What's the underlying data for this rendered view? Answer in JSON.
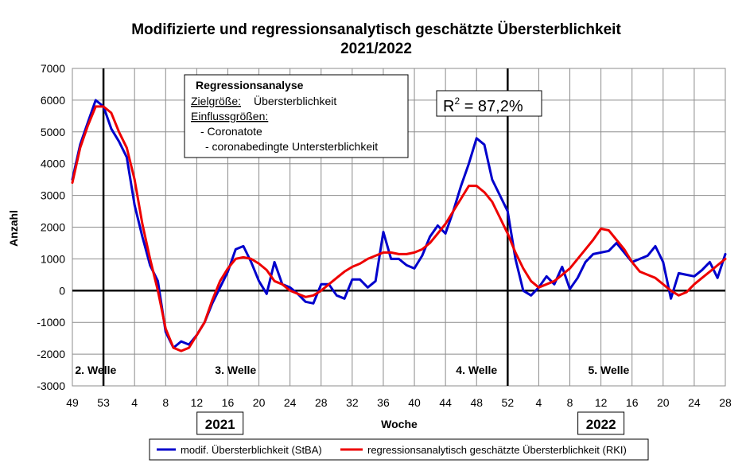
{
  "chart_data": {
    "type": "line",
    "title_line1": "Modifizierte und regressionsanalytisch geschätzte Übersterblichkeit",
    "title_line2": "2021/2022",
    "ylabel": "Anzahl",
    "xlabel": "Woche",
    "ylim": [
      -3000,
      7000
    ],
    "y_ticks": [
      "7000",
      "6000",
      "5000",
      "4000",
      "3000",
      "2000",
      "1000",
      "0",
      "-1000",
      "-2000",
      "-3000"
    ],
    "x_tick_labels": [
      "49",
      "53",
      "4",
      "8",
      "12",
      "16",
      "20",
      "24",
      "28",
      "32",
      "36",
      "40",
      "44",
      "48",
      "52",
      "4",
      "8",
      "12",
      "16",
      "20",
      "24",
      "28"
    ],
    "x_index_range": [
      0,
      84
    ],
    "x_tick_step": 4,
    "grid": true,
    "year_labels": [
      {
        "text": "2021",
        "week_index": 19
      },
      {
        "text": "2022",
        "week_index": 68
      }
    ],
    "wave_separators": [
      4,
      56
    ],
    "wave_labels": [
      {
        "text": "2.  Welle",
        "week_index": 3
      },
      {
        "text": "3.  Welle",
        "week_index": 21
      },
      {
        "text": "4.  Welle",
        "week_index": 52
      },
      {
        "text": "5.  Welle",
        "week_index": 69
      }
    ],
    "regression_box": {
      "heading": "Regressionsanalyse",
      "target_label": "Zielgröße:",
      "target_value": "Übersterblichkeit",
      "inputs_label": "Einflussgrößen:",
      "inputs": [
        "- Coronatote",
        "- coronabedingte  Untersterblichkeit"
      ]
    },
    "r_squared_prefix": "R",
    "r_squared_exponent": "2",
    "r_squared_value": " = 87,2%",
    "legend_position": "bottom",
    "colors": {
      "stba": "#0000cc",
      "rki": "#ee0000",
      "grid": "#8c8c8c"
    },
    "series": [
      {
        "name": "modif. Übersterblichkeit (StBA)",
        "color": "#0000cc",
        "values": [
          3500,
          4600,
          5300,
          6000,
          5800,
          5100,
          4700,
          4200,
          2700,
          1700,
          800,
          300,
          -1300,
          -1800,
          -1600,
          -1700,
          -1400,
          -1000,
          -400,
          100,
          600,
          1300,
          1400,
          900,
          300,
          -100,
          900,
          200,
          100,
          -100,
          -350,
          -400,
          200,
          200,
          -150,
          -250,
          350,
          350,
          100,
          300,
          1850,
          1000,
          1000,
          800,
          700,
          1100,
          1700,
          2050,
          1800,
          2500,
          3300,
          4000,
          4800,
          4600,
          3500,
          3000,
          2500,
          1000,
          0,
          -150,
          100,
          450,
          200,
          750,
          50,
          400,
          900,
          1150,
          1200,
          1250,
          1500,
          1200,
          900,
          1000,
          1100,
          1400,
          900,
          -250,
          550,
          500,
          450,
          650,
          900,
          400,
          1150
        ]
      },
      {
        "name": "regressionsanalytisch geschätzte Übersterblichkeit (RKI)",
        "color": "#ee0000",
        "values": [
          3400,
          4500,
          5200,
          5800,
          5800,
          5600,
          5000,
          4500,
          3500,
          2100,
          1000,
          0,
          -1200,
          -1800,
          -1900,
          -1800,
          -1400,
          -1000,
          -300,
          300,
          700,
          1000,
          1050,
          1000,
          850,
          650,
          300,
          200,
          0,
          -100,
          -200,
          -150,
          0,
          200,
          400,
          600,
          750,
          850,
          1000,
          1100,
          1200,
          1200,
          1150,
          1150,
          1200,
          1300,
          1500,
          1800,
          2100,
          2500,
          2900,
          3300,
          3300,
          3100,
          2800,
          2300,
          1800,
          1200,
          700,
          300,
          100,
          200,
          300,
          500,
          700,
          1000,
          1300,
          1600,
          1950,
          1900,
          1600,
          1300,
          900,
          600,
          500,
          400,
          200,
          0,
          -150,
          -50,
          200,
          400,
          600,
          800,
          1000
        ]
      }
    ]
  }
}
